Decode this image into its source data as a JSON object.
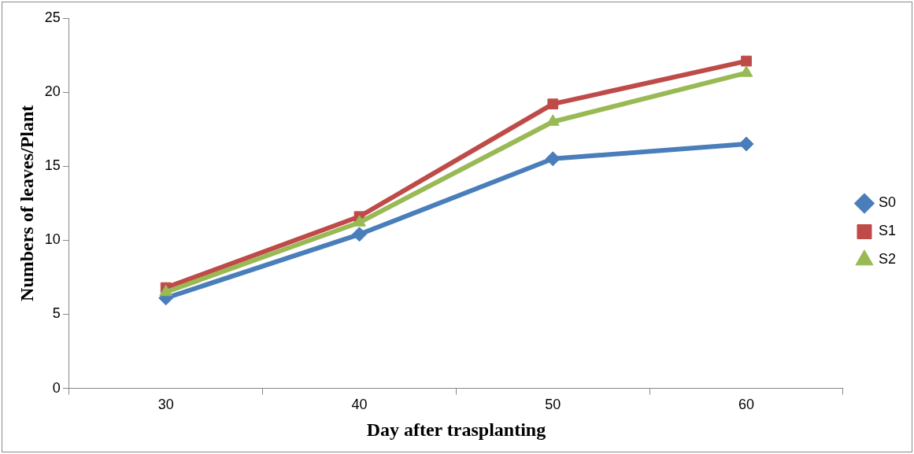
{
  "chart_data": {
    "type": "line",
    "xlabel": "Day after trasplanting",
    "ylabel": "Numbers of leaves/Plant",
    "categories": [
      "30",
      "40",
      "50",
      "60"
    ],
    "series": [
      {
        "name": "S0",
        "color": "#4a7ebb",
        "marker": "diamond",
        "values": [
          6.1,
          10.4,
          15.5,
          16.5
        ]
      },
      {
        "name": "S1",
        "color": "#be4b48",
        "marker": "square",
        "values": [
          6.8,
          11.6,
          19.2,
          22.1
        ]
      },
      {
        "name": "S2",
        "color": "#98b954",
        "marker": "triangle",
        "values": [
          6.5,
          11.2,
          18.0,
          21.3
        ]
      }
    ],
    "ylim": [
      0,
      25
    ],
    "yticks": [
      0,
      5,
      10,
      15,
      20,
      25
    ],
    "grid": false,
    "legend": "right",
    "line_style": "solid"
  }
}
